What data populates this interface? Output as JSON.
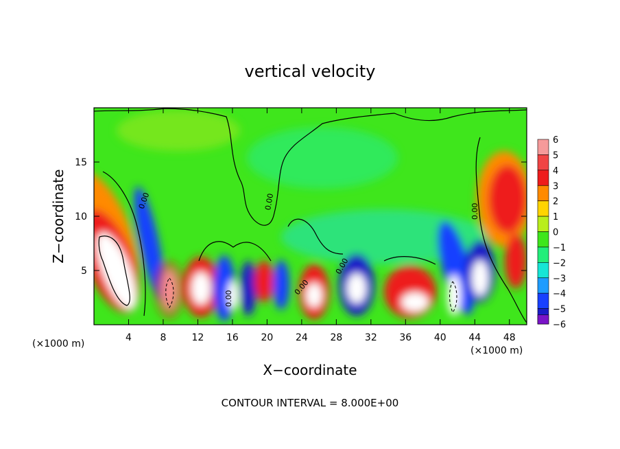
{
  "chart_data": {
    "type": "heatmap",
    "title": "vertical velocity",
    "xlabel": "X−coordinate",
    "ylabel": "Z−coordinate",
    "x_unit": "(×1000 m)",
    "y_unit": "(×1000 m)",
    "xlim": [
      0,
      50
    ],
    "ylim": [
      0,
      20
    ],
    "x_ticks": [
      4,
      8,
      12,
      16,
      20,
      24,
      28,
      32,
      36,
      40,
      44,
      48
    ],
    "y_ticks": [
      5,
      10,
      15
    ],
    "colorbar": {
      "levels": [
        6,
        5,
        4,
        3,
        2,
        1,
        0,
        -1,
        -2,
        -3,
        -4,
        -5,
        -6
      ],
      "colors": [
        "#f59a9a",
        "#f04444",
        "#ee1c1c",
        "#ff8a00",
        "#ffd400",
        "#b9ee1c",
        "#3fe61c",
        "#22ee7a",
        "#16e6d6",
        "#1e9cff",
        "#1840ff",
        "#1c1cc8",
        "#7a14c8"
      ]
    },
    "contour_label": "0.00",
    "footer": "CONTOUR INTERVAL = 8.000E+00"
  }
}
